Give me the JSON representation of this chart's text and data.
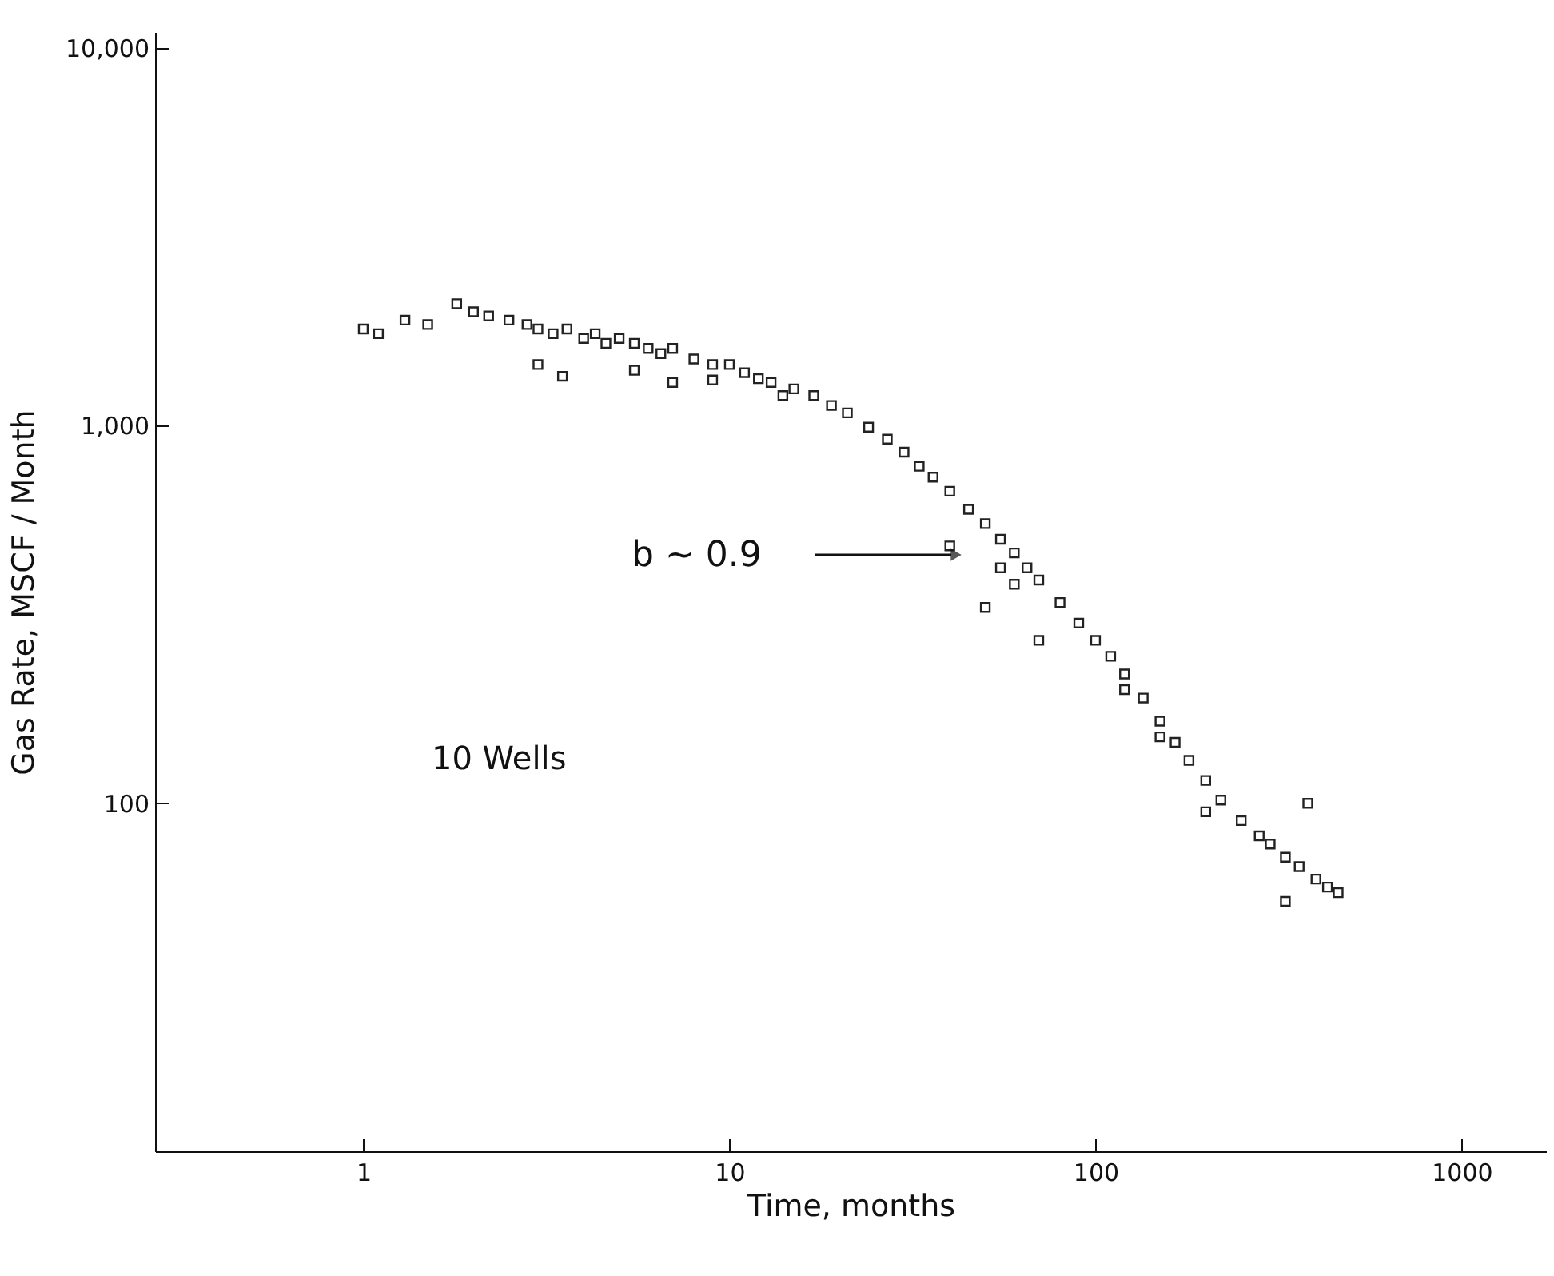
{
  "chart_data": {
    "type": "scatter",
    "xlabel": "Time, months",
    "ylabel": "Gas Rate, MSCF / Month",
    "log": "xy",
    "marker": "square",
    "xlim": [
      0.27,
      1700
    ],
    "ylim": [
      12,
      11000
    ],
    "xticks": [
      1,
      10,
      100,
      {
        "value": 1000,
        "label": "1000"
      }
    ],
    "yticks": [
      100,
      {
        "value": 1000,
        "label": "1,000"
      },
      {
        "value": 10000,
        "label": "10,000"
      }
    ],
    "series": [
      {
        "color": "#222222",
        "x": [
          1,
          1.1,
          1.3,
          1.5,
          1.8,
          2,
          2.2,
          2.5,
          2.8,
          3,
          3.3,
          3.6,
          4,
          4.3,
          4.6,
          5,
          5.5,
          6,
          6.5,
          7,
          8,
          9,
          10,
          11,
          12,
          13,
          15,
          17,
          19,
          21,
          24,
          27,
          30,
          33,
          36,
          40,
          45,
          50,
          55,
          60,
          65,
          70,
          80,
          90,
          100,
          110,
          120,
          135,
          150,
          165,
          180,
          200,
          220,
          250,
          280,
          300,
          330,
          360,
          400,
          430,
          460,
          3,
          3.5,
          5.5,
          7,
          9,
          14,
          40,
          50,
          55,
          60,
          70,
          120,
          150,
          200,
          330,
          380
        ],
        "values": [
          1800,
          1750,
          1900,
          1850,
          2100,
          2000,
          1950,
          1900,
          1850,
          1800,
          1750,
          1800,
          1700,
          1750,
          1650,
          1700,
          1650,
          1600,
          1550,
          1600,
          1500,
          1450,
          1450,
          1380,
          1330,
          1300,
          1250,
          1200,
          1130,
          1080,
          990,
          920,
          850,
          780,
          730,
          670,
          600,
          550,
          500,
          460,
          420,
          390,
          340,
          300,
          270,
          245,
          220,
          190,
          165,
          145,
          130,
          115,
          102,
          90,
          82,
          78,
          72,
          68,
          63,
          60,
          58,
          1450,
          1350,
          1400,
          1300,
          1320,
          1200,
          480,
          330,
          420,
          380,
          270,
          200,
          150,
          95,
          55,
          100
        ]
      }
    ],
    "annotations": [
      "b ∼ 0.9",
      "10 Wells"
    ]
  }
}
